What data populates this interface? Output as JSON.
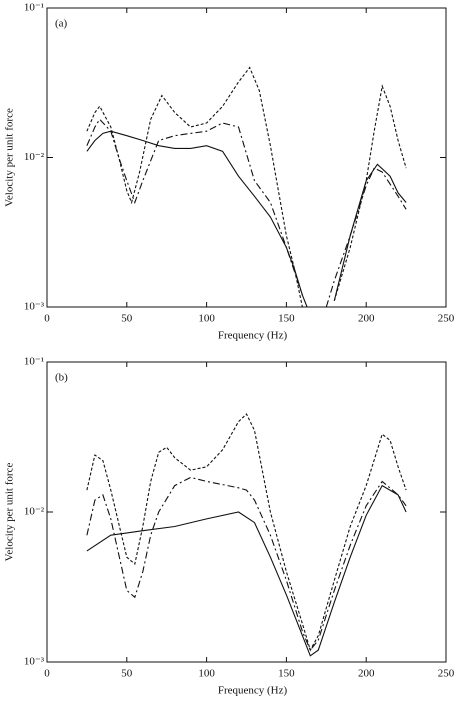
{
  "chart_data": [
    {
      "type": "line",
      "annotation": "(a)",
      "xlabel": "Frequency (Hz)",
      "ylabel": "Velocity per unit force",
      "xlim": [
        0,
        250
      ],
      "xticks": [
        0,
        50,
        100,
        150,
        200,
        250
      ],
      "ylim": [
        0.001,
        0.1
      ],
      "log_y": true,
      "yticks": [
        {
          "value": 0.001,
          "label": "10⁻³"
        },
        {
          "value": 0.01,
          "label": "10⁻²"
        },
        {
          "value": 0.1,
          "label": "10⁻¹"
        }
      ],
      "series": [
        {
          "color": "#111111",
          "dash": "dashed",
          "x": [
            25,
            30,
            33,
            40,
            45,
            50,
            53,
            58,
            65,
            72,
            80,
            90,
            100,
            110,
            120,
            127,
            133,
            140,
            150,
            155,
            160,
            170,
            180,
            190,
            200,
            205,
            210,
            215,
            220,
            225
          ],
          "values": [
            0.015,
            0.02,
            0.022,
            0.016,
            0.01,
            0.006,
            0.005,
            0.008,
            0.018,
            0.026,
            0.02,
            0.016,
            0.017,
            0.022,
            0.032,
            0.04,
            0.028,
            0.012,
            0.003,
            0.0018,
            0.001,
            null,
            0.0011,
            0.0025,
            0.007,
            0.015,
            0.03,
            0.022,
            0.013,
            0.0085
          ]
        },
        {
          "color": "#111111",
          "dash": "dashdot",
          "x": [
            25,
            30,
            33,
            40,
            45,
            50,
            55,
            60,
            70,
            80,
            90,
            100,
            110,
            120,
            130,
            140,
            150,
            160,
            165,
            175,
            180,
            190,
            200,
            205,
            210,
            220,
            225
          ],
          "values": [
            0.012,
            0.016,
            0.018,
            0.015,
            0.01,
            0.007,
            0.005,
            0.007,
            0.013,
            0.014,
            0.0145,
            0.015,
            0.017,
            0.016,
            0.007,
            0.005,
            0.0025,
            0.0012,
            null,
            0.001,
            0.0015,
            0.003,
            0.0065,
            0.0085,
            0.008,
            0.0055,
            0.0045
          ]
        },
        {
          "color": "#111111",
          "dash": "solid",
          "x": [
            25,
            30,
            35,
            40,
            50,
            60,
            70,
            80,
            90,
            100,
            110,
            120,
            130,
            140,
            150,
            155,
            160,
            163,
            175,
            180,
            190,
            200,
            207,
            215,
            220,
            225
          ],
          "values": [
            0.011,
            0.013,
            0.0145,
            0.015,
            0.014,
            0.013,
            0.012,
            0.0115,
            0.0115,
            0.012,
            0.011,
            0.0075,
            0.0055,
            0.004,
            0.0025,
            0.0018,
            0.0012,
            0.001,
            null,
            0.0011,
            0.003,
            0.007,
            0.009,
            0.0075,
            0.0058,
            0.005
          ]
        }
      ]
    },
    {
      "type": "line",
      "annotation": "(b)",
      "xlabel": "Frequency (Hz)",
      "ylabel": "Velocity per unit force",
      "xlim": [
        0,
        250
      ],
      "xticks": [
        0,
        50,
        100,
        150,
        200,
        250
      ],
      "ylim": [
        0.001,
        0.1
      ],
      "log_y": true,
      "yticks": [
        {
          "value": 0.001,
          "label": "10⁻³"
        },
        {
          "value": 0.01,
          "label": "10⁻²"
        },
        {
          "value": 0.1,
          "label": "10⁻¹"
        }
      ],
      "series": [
        {
          "color": "#111111",
          "dash": "dashed",
          "x": [
            25,
            30,
            35,
            40,
            50,
            55,
            60,
            65,
            70,
            75,
            80,
            90,
            100,
            110,
            120,
            125,
            130,
            140,
            150,
            160,
            165,
            170,
            180,
            190,
            200,
            210,
            215,
            220,
            225
          ],
          "values": [
            0.014,
            0.024,
            0.022,
            0.014,
            0.005,
            0.0045,
            0.008,
            0.016,
            0.025,
            0.027,
            0.023,
            0.019,
            0.02,
            0.026,
            0.04,
            0.045,
            0.035,
            0.01,
            0.004,
            0.0018,
            0.0012,
            0.0015,
            0.0035,
            0.008,
            0.015,
            0.033,
            0.03,
            0.02,
            0.014
          ]
        },
        {
          "color": "#111111",
          "dash": "dashdot",
          "x": [
            25,
            30,
            35,
            40,
            50,
            55,
            60,
            65,
            70,
            80,
            90,
            100,
            120,
            125,
            130,
            140,
            150,
            160,
            165,
            170,
            180,
            190,
            200,
            210,
            220,
            225
          ],
          "values": [
            0.007,
            0.012,
            0.013,
            0.009,
            0.003,
            0.0027,
            0.004,
            0.007,
            0.01,
            0.015,
            0.017,
            0.016,
            0.0145,
            0.014,
            0.012,
            0.007,
            0.0035,
            0.0016,
            0.0012,
            0.0014,
            0.003,
            0.006,
            0.011,
            0.016,
            0.013,
            0.011
          ]
        },
        {
          "color": "#111111",
          "dash": "solid",
          "x": [
            25,
            40,
            60,
            80,
            100,
            120,
            130,
            140,
            150,
            160,
            165,
            170,
            180,
            190,
            200,
            210,
            220,
            225
          ],
          "values": [
            0.0055,
            0.007,
            0.0075,
            0.008,
            0.009,
            0.01,
            0.0085,
            0.005,
            0.0028,
            0.0015,
            0.0011,
            0.0012,
            0.0025,
            0.005,
            0.0095,
            0.015,
            0.013,
            0.01
          ]
        }
      ]
    }
  ]
}
